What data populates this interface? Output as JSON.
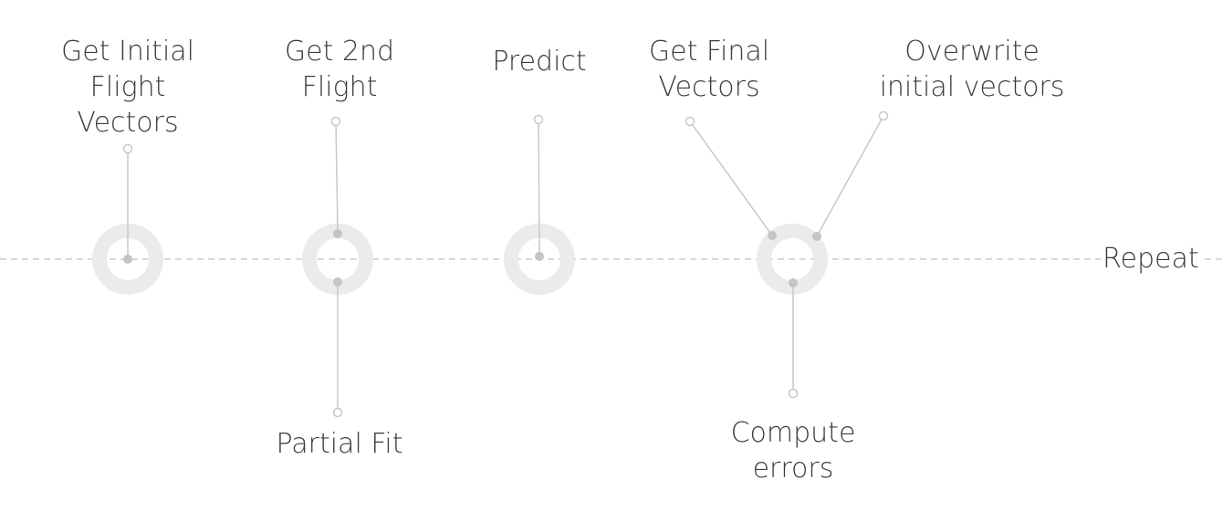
{
  "steps": [
    {
      "id": "initial",
      "label_lines": [
        "Get Initial",
        "Flight",
        "Vectors"
      ]
    },
    {
      "id": "second",
      "label_lines": [
        "Get 2nd",
        "Flight"
      ]
    },
    {
      "id": "partial",
      "label_lines": [
        "Partial Fit"
      ]
    },
    {
      "id": "predict",
      "label_lines": [
        "Predict"
      ]
    },
    {
      "id": "final",
      "label_lines": [
        "Get Final",
        "Vectors"
      ]
    },
    {
      "id": "overwrite",
      "label_lines": [
        "Overwrite",
        "initial vectors"
      ]
    },
    {
      "id": "errors",
      "label_lines": [
        "Compute",
        "errors"
      ]
    }
  ],
  "repeat_label": "Repeat",
  "colors": {
    "ring": "#ebebeb",
    "connector": "#c8c8c8",
    "anchor_dot": "#c4c4c4",
    "timeline": "#cccccc",
    "text": "#3c3c3c"
  }
}
